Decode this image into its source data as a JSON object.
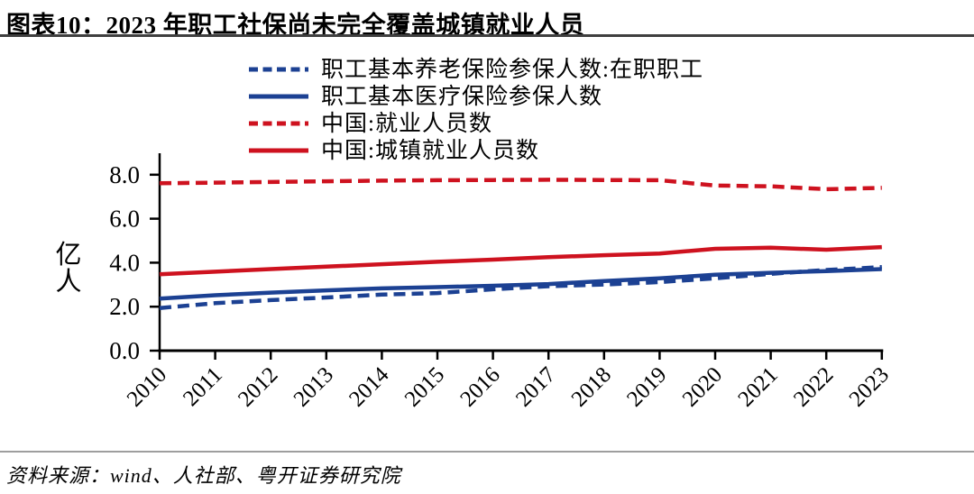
{
  "page": {
    "title": "图表10：2023 年职工社保尚未完全覆盖城镇就业人员",
    "source": "资料来源：wind、人社部、粤开证券研究院"
  },
  "colors": {
    "blue_line": "#1C4193",
    "red_line": "#CE121F"
  },
  "chart_data": {
    "type": "line",
    "title": "图表10：2023 年职工社保尚未完全覆盖城镇就业人员",
    "xlabel": "",
    "ylabel": "亿人",
    "ylim": [
      0,
      9
    ],
    "yticks": [
      0,
      2,
      4,
      6,
      8
    ],
    "grid": false,
    "legend_position": "top",
    "x": [
      2010,
      2011,
      2012,
      2013,
      2014,
      2015,
      2016,
      2017,
      2018,
      2019,
      2020,
      2021,
      2022,
      2023
    ],
    "series": [
      {
        "name": "职工基本养老保险参保人数:在职职工",
        "color": "#1C4193",
        "style": "dashed",
        "values": [
          1.94,
          2.16,
          2.3,
          2.42,
          2.55,
          2.62,
          2.79,
          2.93,
          3.01,
          3.12,
          3.29,
          3.49,
          3.67,
          3.8
        ]
      },
      {
        "name": "职工基本医疗保险参保人数",
        "color": "#1C4193",
        "style": "solid",
        "values": [
          2.37,
          2.52,
          2.64,
          2.74,
          2.83,
          2.89,
          2.95,
          3.03,
          3.17,
          3.29,
          3.45,
          3.54,
          3.62,
          3.71
        ]
      },
      {
        "name": "中国:就业人员数",
        "color": "#CE121F",
        "style": "dashed",
        "values": [
          7.61,
          7.64,
          7.67,
          7.7,
          7.73,
          7.75,
          7.76,
          7.77,
          7.76,
          7.75,
          7.51,
          7.47,
          7.34,
          7.4
        ]
      },
      {
        "name": "中国:城镇就业人员数",
        "color": "#CE121F",
        "style": "solid",
        "values": [
          3.47,
          3.59,
          3.71,
          3.82,
          3.93,
          4.04,
          4.14,
          4.25,
          4.34,
          4.42,
          4.63,
          4.68,
          4.59,
          4.71
        ]
      }
    ]
  }
}
